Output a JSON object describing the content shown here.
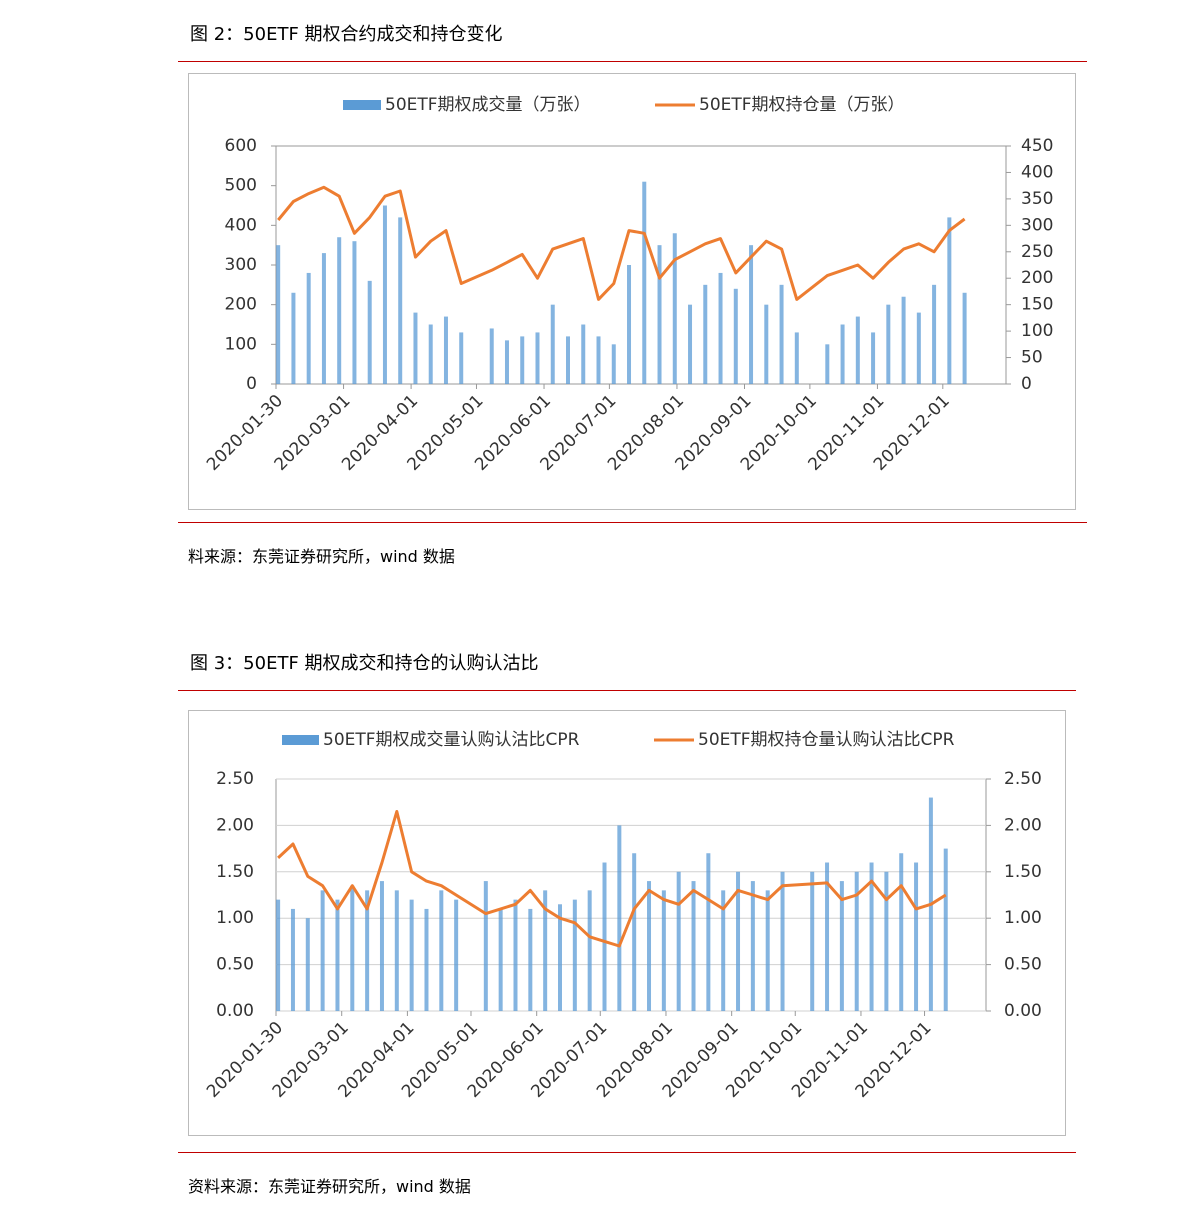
{
  "figures": [
    {
      "title": "图 2：50ETF 期权合约成交和持仓变化",
      "source": "料来源：东莞证券研究所，wind 数据"
    },
    {
      "title": "图 3：50ETF 期权成交和持仓的认购认沽比",
      "source": "资料来源：东莞证券研究所，wind 数据"
    }
  ],
  "chart_data": [
    {
      "type": "combo",
      "x": [
        "2020-01-31",
        "2020-02-07",
        "2020-02-14",
        "2020-02-21",
        "2020-02-28",
        "2020-03-06",
        "2020-03-13",
        "2020-03-20",
        "2020-03-27",
        "2020-04-03",
        "2020-04-10",
        "2020-04-17",
        "2020-04-24",
        "2020-05-08",
        "2020-05-15",
        "2020-05-22",
        "2020-05-29",
        "2020-06-05",
        "2020-06-12",
        "2020-06-19",
        "2020-06-26",
        "2020-07-03",
        "2020-07-10",
        "2020-07-17",
        "2020-07-24",
        "2020-07-31",
        "2020-08-07",
        "2020-08-14",
        "2020-08-21",
        "2020-08-28",
        "2020-09-04",
        "2020-09-11",
        "2020-09-18",
        "2020-09-25",
        "2020-10-09",
        "2020-10-16",
        "2020-10-23",
        "2020-10-30",
        "2020-11-06",
        "2020-11-13",
        "2020-11-20",
        "2020-11-27",
        "2020-12-04",
        "2020-12-11"
      ],
      "series": [
        {
          "name": "50ETF期权成交量（万张）",
          "type": "bar",
          "color": "#5b9bd5",
          "values": [
            350,
            230,
            280,
            330,
            370,
            360,
            260,
            450,
            420,
            180,
            150,
            170,
            130,
            140,
            110,
            120,
            130,
            200,
            120,
            150,
            120,
            100,
            300,
            510,
            350,
            380,
            200,
            250,
            280,
            240,
            350,
            200,
            250,
            130,
            100,
            150,
            170,
            130,
            200,
            220,
            180,
            250,
            420,
            230
          ]
        },
        {
          "name": "50ETF期权持仓量（万张）",
          "type": "line",
          "axis": "y2",
          "color": "#ed7d31",
          "values": [
            310,
            345,
            360,
            372,
            355,
            285,
            315,
            355,
            365,
            240,
            270,
            290,
            190,
            215,
            230,
            245,
            200,
            255,
            265,
            275,
            160,
            190,
            290,
            285,
            200,
            235,
            250,
            265,
            275,
            210,
            240,
            270,
            255,
            160,
            205,
            215,
            225,
            200,
            230,
            255,
            265,
            250,
            290,
            312
          ]
        }
      ],
      "xlim": [
        "2020-01-30",
        "2020-12-30"
      ],
      "xticks": [
        "2020-01-30",
        "2020-03-01",
        "2020-04-01",
        "2020-05-01",
        "2020-06-01",
        "2020-07-01",
        "2020-08-01",
        "2020-09-01",
        "2020-10-01",
        "2020-11-01",
        "2020-12-01"
      ],
      "ylim": [
        0,
        600
      ],
      "yticks": [
        0,
        100,
        200,
        300,
        400,
        500,
        600
      ],
      "y2lim": [
        0,
        450
      ],
      "y2ticks": [
        0,
        50,
        100,
        150,
        200,
        250,
        300,
        350,
        400,
        450
      ],
      "grid": false
    },
    {
      "type": "combo",
      "x": [
        "2020-01-31",
        "2020-02-07",
        "2020-02-14",
        "2020-02-21",
        "2020-02-28",
        "2020-03-06",
        "2020-03-13",
        "2020-03-20",
        "2020-03-27",
        "2020-04-03",
        "2020-04-10",
        "2020-04-17",
        "2020-04-24",
        "2020-05-08",
        "2020-05-15",
        "2020-05-22",
        "2020-05-29",
        "2020-06-05",
        "2020-06-12",
        "2020-06-19",
        "2020-06-26",
        "2020-07-03",
        "2020-07-10",
        "2020-07-17",
        "2020-07-24",
        "2020-07-31",
        "2020-08-07",
        "2020-08-14",
        "2020-08-21",
        "2020-08-28",
        "2020-09-04",
        "2020-09-11",
        "2020-09-18",
        "2020-09-25",
        "2020-10-09",
        "2020-10-16",
        "2020-10-23",
        "2020-10-30",
        "2020-11-06",
        "2020-11-13",
        "2020-11-20",
        "2020-11-27",
        "2020-12-04",
        "2020-12-11"
      ],
      "series": [
        {
          "name": "50ETF期权成交量认购认沽比CPR",
          "type": "bar",
          "color": "#5b9bd5",
          "values": [
            1.2,
            1.1,
            1.0,
            1.3,
            1.2,
            1.35,
            1.3,
            1.4,
            1.3,
            1.2,
            1.1,
            1.3,
            1.2,
            1.4,
            1.1,
            1.2,
            1.1,
            1.3,
            1.15,
            1.2,
            1.3,
            1.6,
            2.0,
            1.7,
            1.4,
            1.3,
            1.5,
            1.4,
            1.7,
            1.3,
            1.5,
            1.4,
            1.3,
            1.5,
            1.5,
            1.6,
            1.4,
            1.5,
            1.6,
            1.5,
            1.7,
            1.6,
            2.3,
            1.75
          ]
        },
        {
          "name": "50ETF期权持仓量认购认沽比CPR",
          "type": "line",
          "axis": "y2",
          "color": "#ed7d31",
          "values": [
            1.65,
            1.8,
            1.45,
            1.35,
            1.1,
            1.35,
            1.1,
            1.6,
            2.15,
            1.5,
            1.4,
            1.35,
            1.25,
            1.05,
            1.1,
            1.15,
            1.3,
            1.1,
            1.0,
            0.95,
            0.8,
            0.75,
            0.7,
            1.1,
            1.3,
            1.2,
            1.15,
            1.3,
            1.2,
            1.1,
            1.3,
            1.25,
            1.2,
            1.35,
            1.37,
            1.38,
            1.2,
            1.25,
            1.4,
            1.2,
            1.35,
            1.1,
            1.15,
            1.25
          ]
        }
      ],
      "xlim": [
        "2020-01-30",
        "2020-12-30"
      ],
      "xticks": [
        "2020-01-30",
        "2020-03-01",
        "2020-04-01",
        "2020-05-01",
        "2020-06-01",
        "2020-07-01",
        "2020-08-01",
        "2020-09-01",
        "2020-10-01",
        "2020-11-01",
        "2020-12-01"
      ],
      "ylim": [
        0,
        2.5
      ],
      "yticks": [
        {
          "value": 0,
          "label": "0.00"
        },
        {
          "value": 0.5,
          "label": "0.50"
        },
        {
          "value": 1,
          "label": "1.00"
        },
        {
          "value": 1.5,
          "label": "1.50"
        },
        {
          "value": 2,
          "label": "2.00"
        },
        {
          "value": 2.5,
          "label": "2.50"
        }
      ],
      "y2lim": [
        0,
        2.5
      ],
      "y2ticks": [
        {
          "value": 0,
          "label": "0.00"
        },
        {
          "value": 0.5,
          "label": "0.50"
        },
        {
          "value": 1,
          "label": "1.00"
        },
        {
          "value": 1.5,
          "label": "1.50"
        },
        {
          "value": 2,
          "label": "2.00"
        },
        {
          "value": 2.5,
          "label": "2.50"
        }
      ],
      "grid": true
    }
  ]
}
